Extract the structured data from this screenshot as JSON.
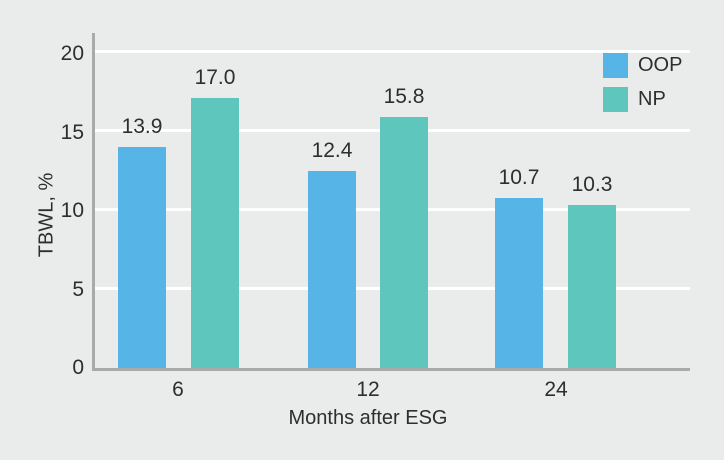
{
  "figure": {
    "background_color": "#eaeceb",
    "axis_color": "#a9abaa",
    "gridline_color": "#ffffff",
    "text_color": "#2d2e2d"
  },
  "chart_data": {
    "type": "bar",
    "title": "",
    "xlabel": "Months after ESG",
    "ylabel": "TBWL, %",
    "categories": [
      "6",
      "12",
      "24"
    ],
    "series": [
      {
        "name": "OOP",
        "color": "#57b4e6",
        "values": [
          13.9,
          12.4,
          10.7
        ],
        "value_labels": [
          "13.9",
          "12.4",
          "10.7"
        ]
      },
      {
        "name": "NP",
        "color": "#5ec6bd",
        "values": [
          17.0,
          15.8,
          10.3
        ],
        "value_labels": [
          "17.0",
          "15.8",
          "10.3"
        ]
      }
    ],
    "ylim": [
      0,
      20
    ],
    "yticks": [
      "0",
      "5",
      "10",
      "15",
      "20"
    ],
    "grid": true,
    "grid_axis": "y",
    "legend_position": "top-right"
  }
}
